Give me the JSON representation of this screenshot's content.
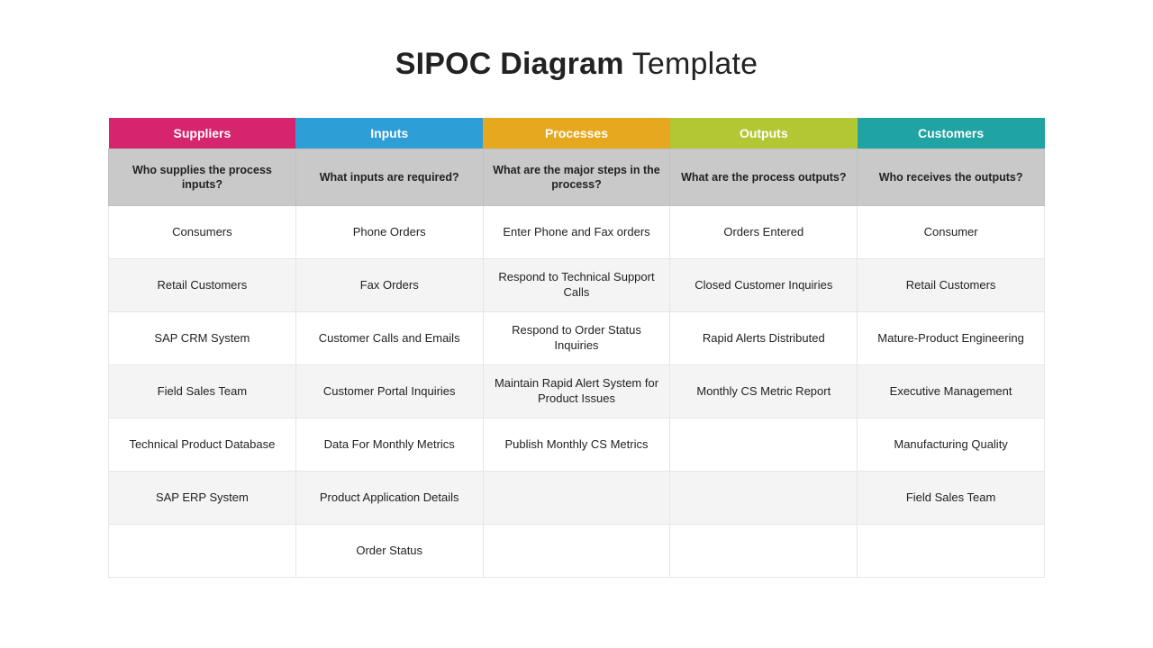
{
  "title": {
    "bold": "SIPOC Diagram",
    "light": " Template"
  },
  "table": {
    "type": "table",
    "background_color": "#ffffff",
    "border_color": "#e6e6e6",
    "question_row_bg": "#c9c9c9",
    "row_alt_bg": "#f4f4f4",
    "font_color": "#222222",
    "header_fontsize": 14,
    "question_fontsize": 12.5,
    "cell_fontsize": 13,
    "columns": [
      {
        "label": "Suppliers",
        "question": "Who supplies the process inputs?",
        "bg": "#d6246e"
      },
      {
        "label": "Inputs",
        "question": "What inputs are required?",
        "bg": "#2e9ed6"
      },
      {
        "label": "Processes",
        "question": "What are the major steps in the process?",
        "bg": "#e6a81f"
      },
      {
        "label": "Outputs",
        "question": "What are the process outputs?",
        "bg": "#b3c734"
      },
      {
        "label": "Customers",
        "question": "Who receives the outputs?",
        "bg": "#1fa3a3"
      }
    ],
    "rows": [
      [
        "Consumers",
        "Phone Orders",
        "Enter Phone and Fax orders",
        "Orders Entered",
        "Consumer"
      ],
      [
        "Retail Customers",
        "Fax Orders",
        "Respond to Technical Support Calls",
        "Closed Customer Inquiries",
        "Retail Customers"
      ],
      [
        "SAP CRM System",
        "Customer Calls and Emails",
        "Respond to Order Status Inquiries",
        "Rapid Alerts Distributed",
        "Mature-Product Engineering"
      ],
      [
        "Field Sales Team",
        "Customer Portal Inquiries",
        "Maintain Rapid Alert System for Product Issues",
        "Monthly CS Metric Report",
        "Executive Management"
      ],
      [
        "Technical Product Database",
        "Data For Monthly Metrics",
        "Publish Monthly CS Metrics",
        "",
        "Manufacturing Quality"
      ],
      [
        "SAP ERP System",
        "Product Application Details",
        "",
        "",
        "Field Sales Team"
      ],
      [
        "",
        "Order Status",
        "",
        "",
        ""
      ]
    ]
  }
}
